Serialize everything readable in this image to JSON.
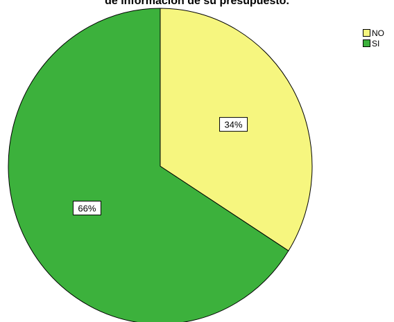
{
  "chart_data": {
    "type": "pie",
    "title": "de información de su presupuesto.",
    "categories": [
      "NO",
      "SI"
    ],
    "values": [
      34,
      66
    ],
    "labels": [
      "34%",
      "66%"
    ],
    "colors": [
      "#f6f67f",
      "#3cb13c"
    ],
    "start_angle_deg": 0,
    "direction": "clockwise",
    "legend_position": "top-right"
  }
}
